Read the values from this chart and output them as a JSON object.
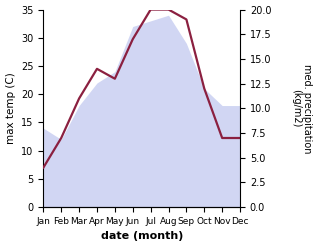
{
  "months": [
    "Jan",
    "Feb",
    "Mar",
    "Apr",
    "May",
    "Jun",
    "Jul",
    "Aug",
    "Sep",
    "Oct",
    "Nov",
    "Dec"
  ],
  "max_temp": [
    14,
    12,
    18,
    22,
    24,
    32,
    33,
    34,
    29,
    21,
    18,
    18
  ],
  "precipitation": [
    4,
    7,
    11,
    14,
    13,
    17,
    20,
    20,
    19,
    12,
    7,
    7
  ],
  "temp_fill_color": "#b3bcec",
  "temp_fill_alpha": 0.6,
  "precip_color": "#8b2040",
  "temp_ylim": [
    0,
    35
  ],
  "precip_ylim": [
    0,
    20
  ],
  "xlabel": "date (month)",
  "ylabel_left": "max temp (C)",
  "ylabel_right": "med. precipitation\n(kg/m2)"
}
